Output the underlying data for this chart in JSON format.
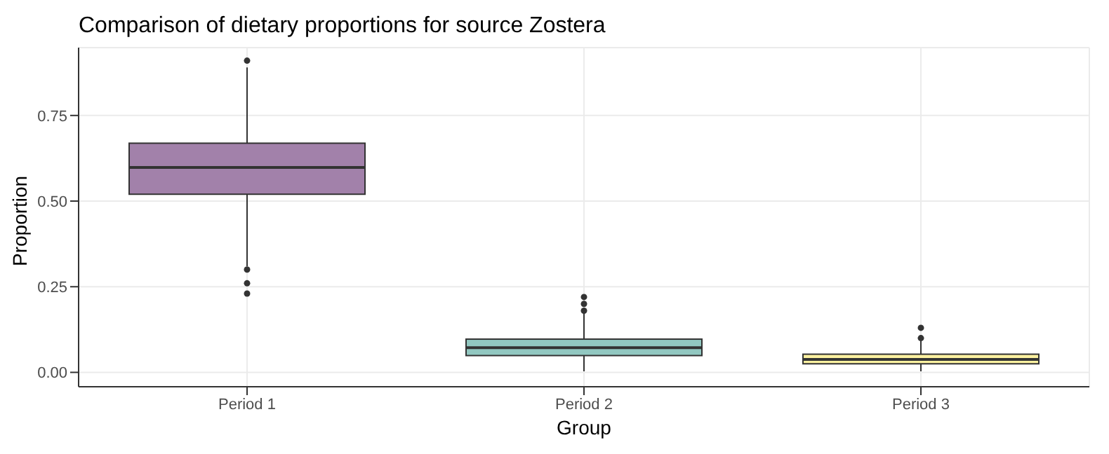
{
  "chart_data": {
    "type": "box",
    "title": "Comparison of dietary proportions for source Zostera",
    "xlabel": "Group",
    "ylabel": "Proportion",
    "categories": [
      "Period 1",
      "Period 2",
      "Period 3"
    ],
    "colors": [
      "#a281aa",
      "#92c8c1",
      "#fcf1a0"
    ],
    "boxes": [
      {
        "low": 0.31,
        "q1": 0.52,
        "median": 0.598,
        "q3": 0.669,
        "high": 0.89,
        "outliers": [
          0.23,
          0.26,
          0.3,
          0.91
        ]
      },
      {
        "low": 0.003,
        "q1": 0.049,
        "median": 0.072,
        "q3": 0.097,
        "high": 0.175,
        "outliers": [
          0.18,
          0.2,
          0.22
        ]
      },
      {
        "low": 0.003,
        "q1": 0.025,
        "median": 0.038,
        "q3": 0.053,
        "high": 0.092,
        "outliers": [
          0.1,
          0.13
        ]
      }
    ],
    "ylim": [
      -0.042,
      0.948
    ],
    "yticks": [
      {
        "value": 0,
        "label": "0.00"
      },
      {
        "value": 0.25,
        "label": "0.25"
      },
      {
        "value": 0.5,
        "label": "0.50"
      },
      {
        "value": 0.75,
        "label": "0.75"
      }
    ],
    "grid": true
  }
}
